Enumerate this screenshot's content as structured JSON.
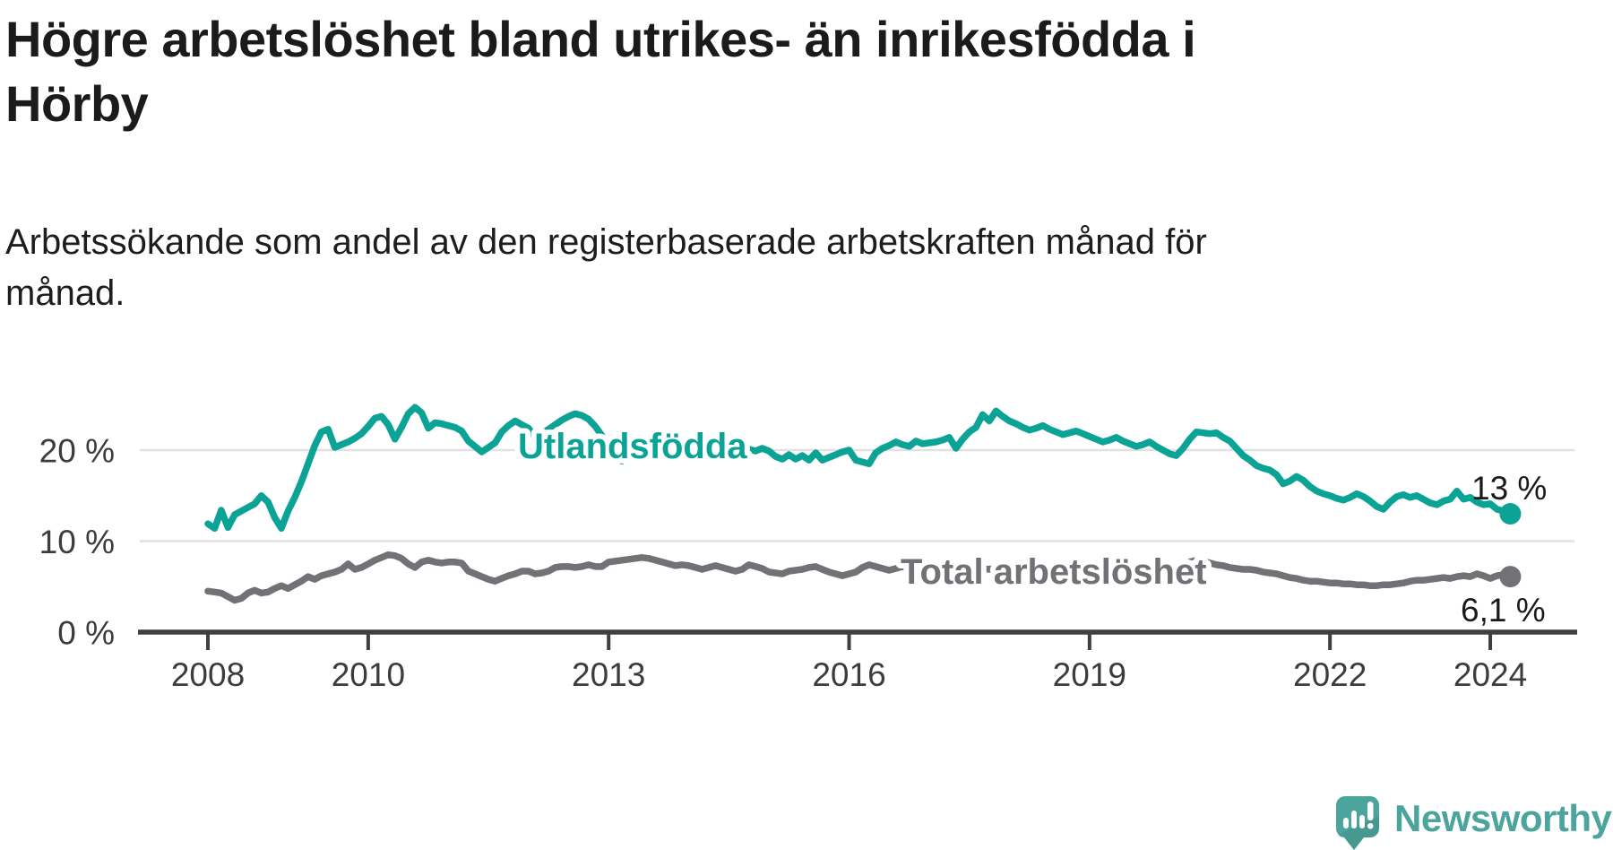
{
  "header": {
    "title_line1": "Högre arbetslöshet bland utrikes- än inrikesfödda i",
    "title_line2": "Hörby",
    "subtitle_line1": "Arbetssökande som andel av den registerbaserade arbetskraften månad för",
    "subtitle_line2": "månad."
  },
  "chart_data": {
    "type": "line",
    "title": "Högre arbetslöshet bland utrikes- än inrikesfödda i Hörby",
    "subtitle": "Arbetssökande som andel av den registerbaserade arbetskraften månad för månad.",
    "x_unit": "month",
    "x_start": "2008-01",
    "x_end": "2024-04",
    "grid": "horizontal",
    "ylim": [
      0,
      26
    ],
    "y_axis": [
      {
        "label": "20 %",
        "value": 20
      },
      {
        "label": "10 %",
        "value": 10
      },
      {
        "label": "0 %",
        "value": 0
      }
    ],
    "x_axis": [
      {
        "label": "2008",
        "year": 2008
      },
      {
        "label": "2010",
        "year": 2010
      },
      {
        "label": "2013",
        "year": 2013
      },
      {
        "label": "2016",
        "year": 2016
      },
      {
        "label": "2019",
        "year": 2019
      },
      {
        "label": "2022",
        "year": 2022
      },
      {
        "label": "2024",
        "year": 2024
      }
    ],
    "series": [
      {
        "name": "Utlandsfödda",
        "color": "#0ba396",
        "end_label": "13 %",
        "end_value": 13.0,
        "values": [
          11.9,
          11.4,
          13.4,
          11.5,
          12.9,
          13.3,
          13.7,
          14.1,
          15.0,
          14.3,
          12.6,
          11.4,
          13.3,
          14.8,
          16.5,
          18.5,
          20.5,
          22.0,
          22.3,
          20.3,
          20.6,
          20.9,
          21.3,
          21.8,
          22.6,
          23.5,
          23.7,
          22.8,
          21.2,
          22.5,
          24.0,
          24.7,
          24.1,
          22.4,
          23.0,
          22.9,
          22.7,
          22.5,
          22.1,
          21.0,
          20.4,
          19.8,
          20.3,
          20.8,
          22.0,
          22.7,
          23.2,
          22.8,
          22.4,
          21.4,
          21.8,
          22.3,
          22.8,
          23.3,
          23.7,
          24.0,
          23.8,
          23.4,
          22.6,
          21.6,
          20.4,
          19.4,
          18.8,
          19.3,
          19.9,
          20.4,
          20.9,
          20.7,
          20.4,
          20.6,
          20.8,
          20.5,
          20.3,
          20.5,
          20.2,
          20.0,
          20.2,
          20.4,
          20.2,
          20.0,
          20.3,
          20.1,
          19.9,
          20.2,
          19.9,
          19.3,
          19.0,
          19.5,
          19.0,
          19.4,
          18.9,
          19.7,
          18.9,
          19.2,
          19.5,
          19.8,
          20.0,
          18.9,
          18.7,
          18.5,
          19.7,
          20.2,
          20.5,
          20.9,
          20.6,
          20.4,
          21.0,
          20.7,
          20.8,
          20.9,
          21.1,
          21.4,
          20.2,
          21.2,
          22.0,
          22.5,
          23.9,
          23.2,
          24.3,
          23.7,
          23.2,
          22.9,
          22.5,
          22.2,
          22.4,
          22.7,
          22.3,
          22.0,
          21.7,
          21.9,
          22.1,
          21.8,
          21.5,
          21.2,
          20.9,
          21.1,
          21.4,
          21.0,
          20.7,
          20.4,
          20.6,
          20.9,
          20.4,
          20.0,
          19.6,
          19.4,
          20.2,
          21.2,
          22.0,
          21.9,
          21.8,
          21.9,
          21.4,
          21.0,
          20.2,
          19.4,
          18.9,
          18.3,
          18.0,
          17.8,
          17.3,
          16.3,
          16.6,
          17.1,
          16.7,
          16.0,
          15.5,
          15.2,
          15.0,
          14.7,
          14.5,
          14.8,
          15.2,
          14.9,
          14.4,
          13.8,
          13.5,
          14.3,
          14.9,
          15.1,
          14.8,
          15.0,
          14.6,
          14.2,
          14.0,
          14.4,
          14.6,
          15.5,
          14.6,
          14.8,
          14.3,
          14.0,
          14.1,
          13.5,
          13.3,
          13.0
        ]
      },
      {
        "name": "Total arbetslöshet",
        "color": "#717176",
        "end_label": "6,1 %",
        "end_value": 6.1,
        "values": [
          4.5,
          4.4,
          4.3,
          3.9,
          3.5,
          3.7,
          4.3,
          4.6,
          4.3,
          4.4,
          4.8,
          5.1,
          4.8,
          5.2,
          5.6,
          6.1,
          5.8,
          6.2,
          6.4,
          6.6,
          6.9,
          7.5,
          6.9,
          7.1,
          7.5,
          7.9,
          8.2,
          8.5,
          8.4,
          8.1,
          7.5,
          7.1,
          7.7,
          7.9,
          7.7,
          7.6,
          7.7,
          7.7,
          7.6,
          6.7,
          6.4,
          6.1,
          5.8,
          5.6,
          5.9,
          6.2,
          6.4,
          6.7,
          6.7,
          6.4,
          6.5,
          6.7,
          7.1,
          7.2,
          7.2,
          7.1,
          7.2,
          7.4,
          7.2,
          7.2,
          7.7,
          7.8,
          7.9,
          8.0,
          8.1,
          8.2,
          8.1,
          7.9,
          7.7,
          7.5,
          7.3,
          7.4,
          7.3,
          7.1,
          6.9,
          7.1,
          7.3,
          7.1,
          6.9,
          6.7,
          6.9,
          7.4,
          7.2,
          7.0,
          6.6,
          6.5,
          6.4,
          6.7,
          6.8,
          6.9,
          7.1,
          7.2,
          6.9,
          6.6,
          6.4,
          6.2,
          6.4,
          6.6,
          7.1,
          7.4,
          7.2,
          7.0,
          6.8,
          7.0,
          7.2,
          7.0,
          6.8,
          7.0,
          7.1,
          7.3,
          7.1,
          6.9,
          7.1,
          7.3,
          7.4,
          7.2,
          7.0,
          6.9,
          7.1,
          7.3,
          7.2,
          7.0,
          6.8,
          7.0,
          7.1,
          6.9,
          6.7,
          6.6,
          6.8,
          6.9,
          6.7,
          6.6,
          6.5,
          6.7,
          6.5,
          6.3,
          6.5,
          6.7,
          6.5,
          6.3,
          6.5,
          6.7,
          6.9,
          7.1,
          7.2,
          7.1,
          7.3,
          7.7,
          7.9,
          7.8,
          7.6,
          7.4,
          7.3,
          7.1,
          7.0,
          6.9,
          6.9,
          6.8,
          6.6,
          6.5,
          6.4,
          6.2,
          6.0,
          5.9,
          5.7,
          5.6,
          5.6,
          5.5,
          5.4,
          5.4,
          5.3,
          5.3,
          5.2,
          5.2,
          5.1,
          5.1,
          5.2,
          5.2,
          5.3,
          5.4,
          5.6,
          5.7,
          5.7,
          5.8,
          5.9,
          6.0,
          5.9,
          6.1,
          6.2,
          6.1,
          6.4,
          6.2,
          5.9,
          6.2,
          6.3,
          6.1
        ]
      }
    ],
    "legend_position": "inline"
  },
  "colors": {
    "teal_line": "#0ba396",
    "gray_line": "#717176",
    "gridline": "#e1e1e1",
    "axis": "#3f3f3f",
    "axis_text": "#3c3c3c",
    "text": "#1b1b19"
  },
  "branding": {
    "logo_text": "Newsworthy",
    "logo_color": "#4ca59d",
    "logo_icon": "newsworthy-speech-bubble-bar-chart-icon"
  }
}
